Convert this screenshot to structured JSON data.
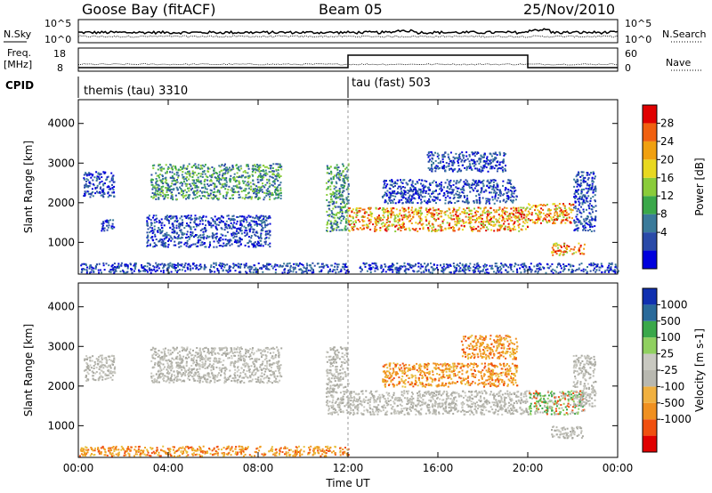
{
  "header": {
    "station": "Goose Bay (fitACF)",
    "beam": "Beam 05",
    "date": "25/Nov/2010"
  },
  "noise_panel": {
    "left_label": "N.Sky",
    "right_label": "N.Search",
    "left_ticks": [
      "10^5",
      "10^0"
    ],
    "right_ticks": [
      "10^5",
      "10^0"
    ]
  },
  "freq_panel": {
    "left_label_1": "Freq.",
    "left_label_2": "[MHz]",
    "right_label": "Nave",
    "left_ticks": [
      "18",
      "8"
    ],
    "right_ticks": [
      "60",
      "0"
    ]
  },
  "cpid": {
    "label": "CPID",
    "modes": [
      {
        "name": "themis (tau) 3310",
        "start_hour": 0
      },
      {
        "name": "tau (fast) 503",
        "start_hour": 12
      }
    ]
  },
  "chart_data": [
    {
      "type": "heatmap",
      "parameter": "power",
      "ylabel": "Slant Range [km]",
      "yticks": [
        1000,
        2000,
        3000,
        4000
      ],
      "ylim": [
        200,
        4600
      ],
      "xlim": [
        0,
        24
      ],
      "colorbar": {
        "label": "Power [dB]",
        "ticks": [
          "28",
          "24",
          "20",
          "16",
          "12",
          "8",
          "4"
        ],
        "colors": [
          "#0000dd",
          "#2a4aa8",
          "#3a7a9a",
          "#3aa84a",
          "#8acc3a",
          "#e8d820",
          "#f0a010",
          "#f06010",
          "#e00000"
        ]
      },
      "regions": [
        {
          "x": [
            0.2,
            1.6
          ],
          "y": [
            2150,
            2800
          ],
          "level": "low"
        },
        {
          "x": [
            3.2,
            9.0
          ],
          "y": [
            2100,
            3000
          ],
          "level": "mid"
        },
        {
          "x": [
            1.0,
            1.6
          ],
          "y": [
            1300,
            1600
          ],
          "level": "low"
        },
        {
          "x": [
            3.0,
            8.5
          ],
          "y": [
            900,
            1700
          ],
          "level": "low"
        },
        {
          "x": [
            0.0,
            12.0
          ],
          "y": [
            250,
            500
          ],
          "level": "low"
        },
        {
          "x": [
            11.0,
            12.0
          ],
          "y": [
            1300,
            3000
          ],
          "level": "mid"
        },
        {
          "x": [
            12.0,
            20.0
          ],
          "y": [
            1300,
            1900
          ],
          "level": "high"
        },
        {
          "x": [
            13.5,
            19.5
          ],
          "y": [
            2000,
            2600
          ],
          "level": "low"
        },
        {
          "x": [
            15.5,
            19.0
          ],
          "y": [
            2800,
            3300
          ],
          "level": "low"
        },
        {
          "x": [
            20.0,
            22.0
          ],
          "y": [
            1500,
            2000
          ],
          "level": "high"
        },
        {
          "x": [
            21.0,
            22.5
          ],
          "y": [
            700,
            1000
          ],
          "level": "high"
        },
        {
          "x": [
            22.0,
            23.0
          ],
          "y": [
            1300,
            2800
          ],
          "level": "low"
        },
        {
          "x": [
            12.5,
            24.0
          ],
          "y": [
            250,
            500
          ],
          "level": "low"
        }
      ]
    },
    {
      "type": "heatmap",
      "parameter": "velocity",
      "ylabel": "Slant Range [km]",
      "yticks": [
        1000,
        2000,
        3000,
        4000
      ],
      "ylim": [
        200,
        4600
      ],
      "xlim": [
        0,
        24
      ],
      "xlabel": "Time UT",
      "xticks": [
        "00:00",
        "04:00",
        "08:00",
        "12:00",
        "16:00",
        "20:00",
        "00:00"
      ],
      "colorbar": {
        "label": "Velocity [m s-1]",
        "ticks": [
          "1000",
          "500",
          "100",
          "25",
          "-25",
          "-100",
          "-500",
          "-1000"
        ],
        "colors": [
          "#e00000",
          "#f05010",
          "#f09020",
          "#f0b040",
          "#b8b8b0",
          "#c8c8c0",
          "#90d060",
          "#3aa84a",
          "#2a6a9a",
          "#1030b0"
        ]
      },
      "regions": [
        {
          "x": [
            0.2,
            1.6
          ],
          "y": [
            2150,
            2800
          ],
          "level": "gray"
        },
        {
          "x": [
            3.2,
            9.0
          ],
          "y": [
            2100,
            3000
          ],
          "level": "gray"
        },
        {
          "x": [
            0.0,
            12.0
          ],
          "y": [
            250,
            500
          ],
          "level": "orange"
        },
        {
          "x": [
            11.0,
            12.0
          ],
          "y": [
            1300,
            3000
          ],
          "level": "gray"
        },
        {
          "x": [
            12.0,
            20.0
          ],
          "y": [
            1300,
            1900
          ],
          "level": "gray"
        },
        {
          "x": [
            13.5,
            19.5
          ],
          "y": [
            2000,
            2600
          ],
          "level": "orange"
        },
        {
          "x": [
            17.0,
            19.5
          ],
          "y": [
            2700,
            3300
          ],
          "level": "orange"
        },
        {
          "x": [
            20.0,
            22.5
          ],
          "y": [
            1300,
            1900
          ],
          "level": "mixed"
        },
        {
          "x": [
            21.0,
            22.5
          ],
          "y": [
            700,
            1000
          ],
          "level": "gray"
        },
        {
          "x": [
            22.0,
            23.0
          ],
          "y": [
            1500,
            2800
          ],
          "level": "gray"
        }
      ]
    }
  ]
}
